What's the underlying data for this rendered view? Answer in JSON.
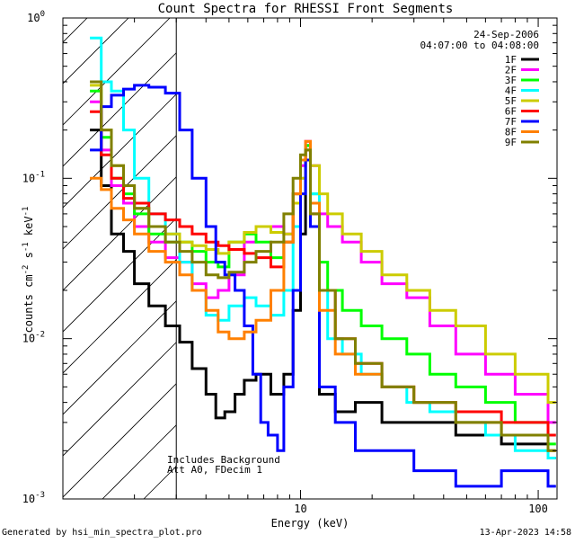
{
  "chart_data": {
    "type": "line",
    "title": "Count Spectra for RHESSI Front Segments",
    "xlabel": "Energy (keV)",
    "ylabel_parts": [
      "counts cm",
      "-2",
      " s",
      "-1",
      " keV",
      "-1"
    ],
    "xscale": "log",
    "yscale": "log",
    "xlim": [
      1,
      120
    ],
    "ylim": [
      0.001,
      1
    ],
    "x_ticks": [
      {
        "value": 10,
        "label": "10"
      },
      {
        "value": 100,
        "label": "100"
      }
    ],
    "y_ticks": [
      {
        "value": 1,
        "base": "10",
        "exp": "0"
      },
      {
        "value": 0.1,
        "base": "10",
        "exp": "-1"
      },
      {
        "value": 0.01,
        "base": "10",
        "exp": "-2"
      },
      {
        "value": 0.001,
        "base": "10",
        "exp": "-3"
      }
    ],
    "hatched_region": [
      1,
      3
    ],
    "annotations": {
      "date": "24-Sep-2006",
      "time_range": "04:07:00 to 04:08:00",
      "background_note": "Includes Background",
      "attenuator_note": "Att A0, FDecim 1"
    },
    "footer": {
      "generated_by": "Generated by hsi_min_spectra_plot.pro",
      "timestamp": "13-Apr-2023 14:58"
    },
    "legend_position": "top-right",
    "series": [
      {
        "name": "1F",
        "color": "#000000",
        "x": [
          1.3,
          1.45,
          1.6,
          1.8,
          2.0,
          2.3,
          2.7,
          3.1,
          3.5,
          4.0,
          4.4,
          4.8,
          5.3,
          5.8,
          6.5,
          7.5,
          8.5,
          9.3,
          10.0,
          10.5,
          11.0,
          12.0,
          14.0,
          17.0,
          22.0,
          30.0,
          45.0,
          70.0,
          110.0
        ],
        "values": [
          0.2,
          0.09,
          0.045,
          0.035,
          0.022,
          0.016,
          0.012,
          0.0095,
          0.0065,
          0.0045,
          0.0032,
          0.0035,
          0.0045,
          0.0055,
          0.006,
          0.0045,
          0.006,
          0.015,
          0.045,
          0.16,
          0.07,
          0.0045,
          0.0035,
          0.004,
          0.003,
          0.003,
          0.0025,
          0.0022,
          0.0018
        ]
      },
      {
        "name": "2F",
        "color": "#ff00ff",
        "x": [
          1.3,
          1.45,
          1.6,
          1.8,
          2.0,
          2.3,
          2.7,
          3.1,
          3.5,
          4.0,
          4.5,
          5.0,
          5.8,
          6.5,
          7.5,
          8.5,
          9.3,
          10.0,
          10.5,
          11.0,
          12.0,
          13.0,
          15.0,
          18.0,
          22.0,
          28.0,
          35.0,
          45.0,
          60.0,
          80.0,
          110.0
        ],
        "values": [
          0.3,
          0.15,
          0.09,
          0.07,
          0.05,
          0.04,
          0.032,
          0.03,
          0.022,
          0.018,
          0.02,
          0.025,
          0.04,
          0.05,
          0.05,
          0.045,
          0.07,
          0.12,
          0.17,
          0.12,
          0.06,
          0.05,
          0.04,
          0.03,
          0.022,
          0.018,
          0.012,
          0.008,
          0.006,
          0.0045,
          0.003
        ]
      },
      {
        "name": "3F",
        "color": "#00ff00",
        "x": [
          1.3,
          1.45,
          1.6,
          1.8,
          2.0,
          2.3,
          2.7,
          3.1,
          3.5,
          4.0,
          4.5,
          5.0,
          5.8,
          6.5,
          7.5,
          8.5,
          9.3,
          10.0,
          10.5,
          11.0,
          12.0,
          13.0,
          15.0,
          18.0,
          22.0,
          28.0,
          35.0,
          45.0,
          60.0,
          80.0,
          110.0
        ],
        "values": [
          0.35,
          0.18,
          0.1,
          0.08,
          0.06,
          0.045,
          0.04,
          0.04,
          0.035,
          0.03,
          0.028,
          0.04,
          0.045,
          0.04,
          0.032,
          0.04,
          0.08,
          0.13,
          0.16,
          0.08,
          0.03,
          0.02,
          0.015,
          0.012,
          0.01,
          0.008,
          0.006,
          0.005,
          0.004,
          0.003,
          0.0022
        ]
      },
      {
        "name": "4F",
        "color": "#00ffff",
        "x": [
          1.3,
          1.45,
          1.6,
          1.8,
          2.0,
          2.3,
          2.7,
          3.1,
          3.5,
          4.0,
          4.5,
          5.0,
          5.8,
          6.5,
          7.5,
          8.5,
          9.3,
          10.0,
          10.5,
          11.0,
          12.0,
          13.0,
          15.0,
          18.0,
          22.0,
          28.0,
          35.0,
          45.0,
          60.0,
          80.0,
          110.0
        ],
        "values": [
          0.75,
          0.4,
          0.35,
          0.2,
          0.1,
          0.06,
          0.045,
          0.03,
          0.02,
          0.014,
          0.013,
          0.016,
          0.018,
          0.016,
          0.014,
          0.02,
          0.05,
          0.1,
          0.15,
          0.08,
          0.02,
          0.01,
          0.008,
          0.006,
          0.005,
          0.004,
          0.0035,
          0.003,
          0.0025,
          0.002,
          0.0018
        ]
      },
      {
        "name": "5F",
        "color": "#cccc00",
        "x": [
          1.3,
          1.45,
          1.6,
          1.8,
          2.0,
          2.3,
          2.7,
          3.1,
          3.5,
          4.0,
          4.5,
          5.0,
          5.8,
          6.5,
          7.5,
          8.5,
          9.3,
          10.0,
          10.5,
          11.0,
          12.0,
          13.0,
          15.0,
          18.0,
          22.0,
          28.0,
          35.0,
          45.0,
          60.0,
          80.0,
          110.0
        ],
        "values": [
          0.38,
          0.2,
          0.12,
          0.09,
          0.065,
          0.05,
          0.045,
          0.04,
          0.038,
          0.036,
          0.034,
          0.04,
          0.046,
          0.05,
          0.046,
          0.045,
          0.07,
          0.1,
          0.15,
          0.12,
          0.08,
          0.06,
          0.045,
          0.035,
          0.025,
          0.02,
          0.015,
          0.012,
          0.008,
          0.006,
          0.004
        ]
      },
      {
        "name": "6F",
        "color": "#ff0000",
        "x": [
          1.3,
          1.45,
          1.6,
          1.8,
          2.0,
          2.3,
          2.7,
          3.1,
          3.5,
          4.0,
          4.5,
          5.0,
          5.8,
          6.5,
          7.5,
          8.5,
          9.3,
          10.0,
          10.5,
          11.0,
          12.0,
          14.0,
          17.0,
          22.0,
          30.0,
          45.0,
          70.0,
          110.0
        ],
        "values": [
          0.26,
          0.14,
          0.1,
          0.075,
          0.07,
          0.06,
          0.055,
          0.05,
          0.045,
          0.04,
          0.038,
          0.036,
          0.034,
          0.032,
          0.028,
          0.04,
          0.08,
          0.13,
          0.15,
          0.06,
          0.02,
          0.01,
          0.007,
          0.005,
          0.004,
          0.0035,
          0.003,
          0.0025
        ]
      },
      {
        "name": "7F",
        "color": "#0000ff",
        "x": [
          1.3,
          1.45,
          1.6,
          1.8,
          2.0,
          2.3,
          2.7,
          3.1,
          3.5,
          4.0,
          4.4,
          4.8,
          5.3,
          5.8,
          6.3,
          6.8,
          7.3,
          8.0,
          8.5,
          9.3,
          10.0,
          10.5,
          11.0,
          12.0,
          14.0,
          17.0,
          22.0,
          30.0,
          45.0,
          70.0,
          110.0
        ],
        "values": [
          0.15,
          0.28,
          0.33,
          0.36,
          0.38,
          0.37,
          0.34,
          0.2,
          0.1,
          0.05,
          0.03,
          0.025,
          0.02,
          0.012,
          0.006,
          0.003,
          0.0025,
          0.002,
          0.005,
          0.02,
          0.08,
          0.13,
          0.05,
          0.005,
          0.003,
          0.002,
          0.002,
          0.0015,
          0.0012,
          0.0015,
          0.0012
        ]
      },
      {
        "name": "8F",
        "color": "#ff8000",
        "x": [
          1.3,
          1.45,
          1.6,
          1.8,
          2.0,
          2.3,
          2.7,
          3.1,
          3.5,
          4.0,
          4.5,
          5.0,
          5.8,
          6.5,
          7.5,
          8.5,
          9.3,
          10.0,
          10.5,
          11.0,
          12.0,
          14.0,
          17.0,
          22.0,
          30.0,
          45.0,
          70.0,
          110.0
        ],
        "values": [
          0.1,
          0.085,
          0.065,
          0.055,
          0.045,
          0.035,
          0.03,
          0.025,
          0.02,
          0.015,
          0.011,
          0.01,
          0.011,
          0.013,
          0.02,
          0.04,
          0.08,
          0.13,
          0.17,
          0.07,
          0.015,
          0.008,
          0.006,
          0.005,
          0.004,
          0.003,
          0.0025,
          0.002
        ]
      },
      {
        "name": "9F",
        "color": "#808000",
        "x": [
          1.3,
          1.45,
          1.6,
          1.8,
          2.0,
          2.3,
          2.7,
          3.1,
          3.5,
          4.0,
          4.5,
          5.0,
          5.8,
          6.5,
          7.5,
          8.5,
          9.3,
          10.0,
          10.5,
          11.0,
          12.0,
          14.0,
          17.0,
          22.0,
          30.0,
          45.0,
          70.0,
          110.0
        ],
        "values": [
          0.4,
          0.2,
          0.12,
          0.09,
          0.065,
          0.05,
          0.04,
          0.035,
          0.03,
          0.025,
          0.024,
          0.026,
          0.03,
          0.035,
          0.04,
          0.06,
          0.1,
          0.14,
          0.15,
          0.06,
          0.02,
          0.01,
          0.007,
          0.005,
          0.004,
          0.003,
          0.0025,
          0.002
        ]
      }
    ]
  }
}
